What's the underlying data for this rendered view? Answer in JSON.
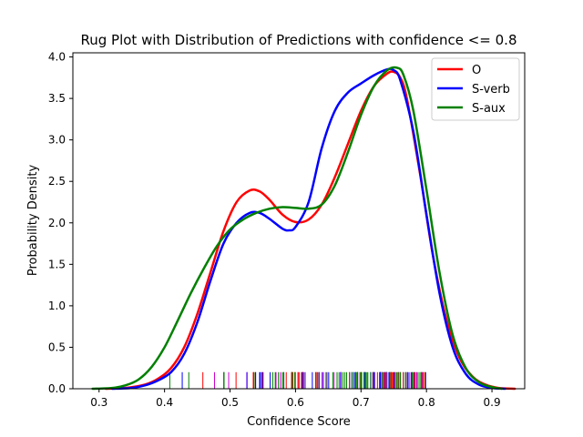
{
  "chart_data": {
    "type": "line",
    "title": "Rug Plot with Distribution of Predictions with confidence <= 0.8",
    "xlabel": "Confidence Score",
    "ylabel": "Probability Density",
    "xlim": [
      0.26,
      0.95
    ],
    "ylim": [
      0.0,
      4.05
    ],
    "xticks": [
      0.3,
      0.4,
      0.5,
      0.6,
      0.7,
      0.8,
      0.9
    ],
    "xtick_labels": [
      "0.3",
      "0.4",
      "0.5",
      "0.6",
      "0.7",
      "0.8",
      "0.9"
    ],
    "yticks": [
      0.0,
      0.5,
      1.0,
      1.5,
      2.0,
      2.5,
      3.0,
      3.5,
      4.0
    ],
    "ytick_labels": [
      "0.0",
      "0.5",
      "1.0",
      "1.5",
      "2.0",
      "2.5",
      "3.0",
      "3.5",
      "4.0"
    ],
    "grid": false,
    "legend_position": "top-right",
    "series": [
      {
        "name": "O",
        "color": "#ff0000",
        "points": [
          [
            0.31,
            0.0
          ],
          [
            0.34,
            0.01
          ],
          [
            0.37,
            0.05
          ],
          [
            0.39,
            0.12
          ],
          [
            0.41,
            0.25
          ],
          [
            0.43,
            0.5
          ],
          [
            0.45,
            0.9
          ],
          [
            0.47,
            1.4
          ],
          [
            0.49,
            1.9
          ],
          [
            0.51,
            2.25
          ],
          [
            0.53,
            2.39
          ],
          [
            0.545,
            2.38
          ],
          [
            0.56,
            2.28
          ],
          [
            0.58,
            2.1
          ],
          [
            0.6,
            2.01
          ],
          [
            0.62,
            2.04
          ],
          [
            0.64,
            2.22
          ],
          [
            0.66,
            2.55
          ],
          [
            0.68,
            2.95
          ],
          [
            0.7,
            3.35
          ],
          [
            0.72,
            3.65
          ],
          [
            0.74,
            3.8
          ],
          [
            0.75,
            3.82
          ],
          [
            0.76,
            3.75
          ],
          [
            0.77,
            3.5
          ],
          [
            0.79,
            2.6
          ],
          [
            0.81,
            1.6
          ],
          [
            0.83,
            0.85
          ],
          [
            0.85,
            0.38
          ],
          [
            0.87,
            0.15
          ],
          [
            0.89,
            0.05
          ],
          [
            0.91,
            0.01
          ],
          [
            0.935,
            0.0
          ]
        ]
      },
      {
        "name": "S-verb",
        "color": "#0000ff",
        "points": [
          [
            0.32,
            0.0
          ],
          [
            0.35,
            0.01
          ],
          [
            0.37,
            0.04
          ],
          [
            0.39,
            0.1
          ],
          [
            0.41,
            0.2
          ],
          [
            0.43,
            0.42
          ],
          [
            0.45,
            0.8
          ],
          [
            0.47,
            1.3
          ],
          [
            0.49,
            1.75
          ],
          [
            0.51,
            2.0
          ],
          [
            0.53,
            2.12
          ],
          [
            0.545,
            2.12
          ],
          [
            0.56,
            2.05
          ],
          [
            0.58,
            1.93
          ],
          [
            0.59,
            1.91
          ],
          [
            0.6,
            1.95
          ],
          [
            0.62,
            2.25
          ],
          [
            0.64,
            2.9
          ],
          [
            0.66,
            3.35
          ],
          [
            0.68,
            3.57
          ],
          [
            0.7,
            3.68
          ],
          [
            0.72,
            3.78
          ],
          [
            0.74,
            3.85
          ],
          [
            0.75,
            3.84
          ],
          [
            0.76,
            3.72
          ],
          [
            0.78,
            3.1
          ],
          [
            0.8,
            2.1
          ],
          [
            0.82,
            1.15
          ],
          [
            0.84,
            0.5
          ],
          [
            0.86,
            0.18
          ],
          [
            0.88,
            0.05
          ],
          [
            0.9,
            0.01
          ],
          [
            0.92,
            0.0
          ]
        ]
      },
      {
        "name": "S-aux",
        "color": "#008000",
        "points": [
          [
            0.29,
            0.0
          ],
          [
            0.32,
            0.01
          ],
          [
            0.34,
            0.04
          ],
          [
            0.36,
            0.11
          ],
          [
            0.38,
            0.26
          ],
          [
            0.4,
            0.5
          ],
          [
            0.42,
            0.82
          ],
          [
            0.44,
            1.15
          ],
          [
            0.46,
            1.45
          ],
          [
            0.48,
            1.72
          ],
          [
            0.5,
            1.92
          ],
          [
            0.52,
            2.04
          ],
          [
            0.54,
            2.12
          ],
          [
            0.56,
            2.17
          ],
          [
            0.58,
            2.19
          ],
          [
            0.6,
            2.18
          ],
          [
            0.62,
            2.17
          ],
          [
            0.64,
            2.22
          ],
          [
            0.66,
            2.45
          ],
          [
            0.68,
            2.85
          ],
          [
            0.7,
            3.3
          ],
          [
            0.72,
            3.65
          ],
          [
            0.74,
            3.84
          ],
          [
            0.755,
            3.87
          ],
          [
            0.765,
            3.78
          ],
          [
            0.78,
            3.35
          ],
          [
            0.8,
            2.4
          ],
          [
            0.82,
            1.4
          ],
          [
            0.84,
            0.65
          ],
          [
            0.86,
            0.25
          ],
          [
            0.88,
            0.08
          ],
          [
            0.9,
            0.02
          ],
          [
            0.915,
            0.0
          ]
        ]
      }
    ]
  }
}
